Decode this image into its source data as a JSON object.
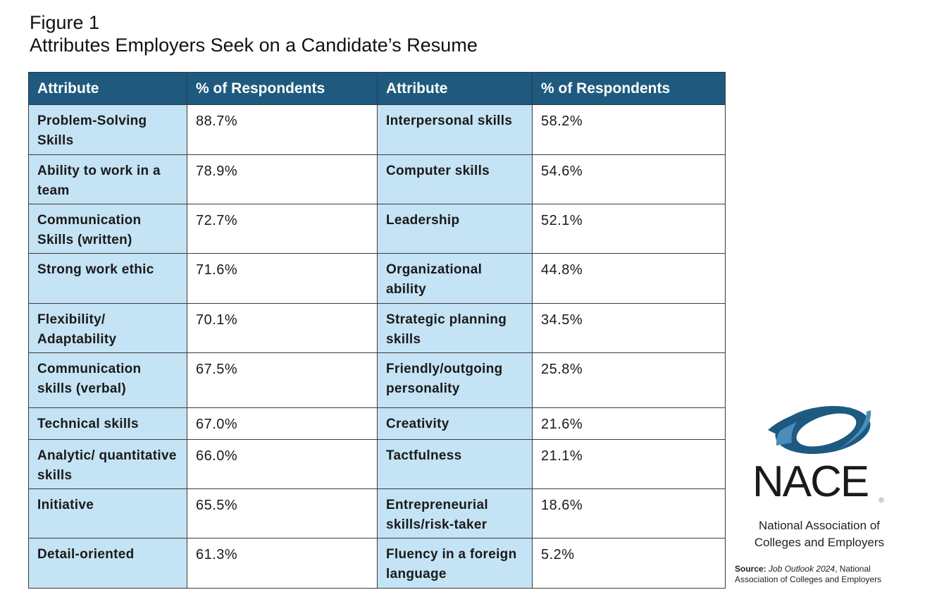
{
  "figure_label": "Figure 1",
  "title": "Attributes Employers Seek on a Candidate’s Resume",
  "chart_data": {
    "type": "table",
    "title": "Attributes Employers Seek on a Candidate’s Resume",
    "columns": [
      "Attribute",
      "% of Respondents",
      "Attribute",
      "% of Respondents"
    ],
    "rows": [
      [
        "Problem-Solving Skills",
        "88.7%",
        "Interpersonal skills",
        "58.2%"
      ],
      [
        "Ability to work in a team",
        "78.9%",
        "Computer skills",
        "54.6%"
      ],
      [
        "Communication Skills (written)",
        "72.7%",
        "Leadership",
        "52.1%"
      ],
      [
        "Strong work ethic",
        "71.6%",
        "Organizational ability",
        "44.8%"
      ],
      [
        "Flexibility/ Adaptability",
        "70.1%",
        "Strategic planning skills",
        "34.5%"
      ],
      [
        "Communication skills (verbal)",
        "67.5%",
        "Friendly/outgoing personality",
        "25.8%"
      ],
      [
        "Technical skills",
        "67.0%",
        "Creativity",
        "21.6%"
      ],
      [
        "Analytic/ quantitative skills",
        "66.0%",
        "Tactfulness",
        "21.1%"
      ],
      [
        "Initiative",
        "65.5%",
        "Entrepreneurial skills/risk-taker",
        "18.6%"
      ],
      [
        "Detail-oriented",
        "61.3%",
        "Fluency in a foreign language",
        "5.2%"
      ]
    ]
  },
  "logo": {
    "text": "NACE",
    "registered": "®",
    "org_line1": "National Association of",
    "org_line2": "Colleges and Employers"
  },
  "source": {
    "label": "Source:",
    "title": "Job Outlook 2024",
    "rest": ", National",
    "line2": "Association of Colleges and Employers"
  },
  "colors": {
    "header": "#1f5a7e",
    "attribute_cell": "#c4e3f4",
    "logo_dark": "#1d5a82",
    "logo_light": "#4a8db8"
  }
}
